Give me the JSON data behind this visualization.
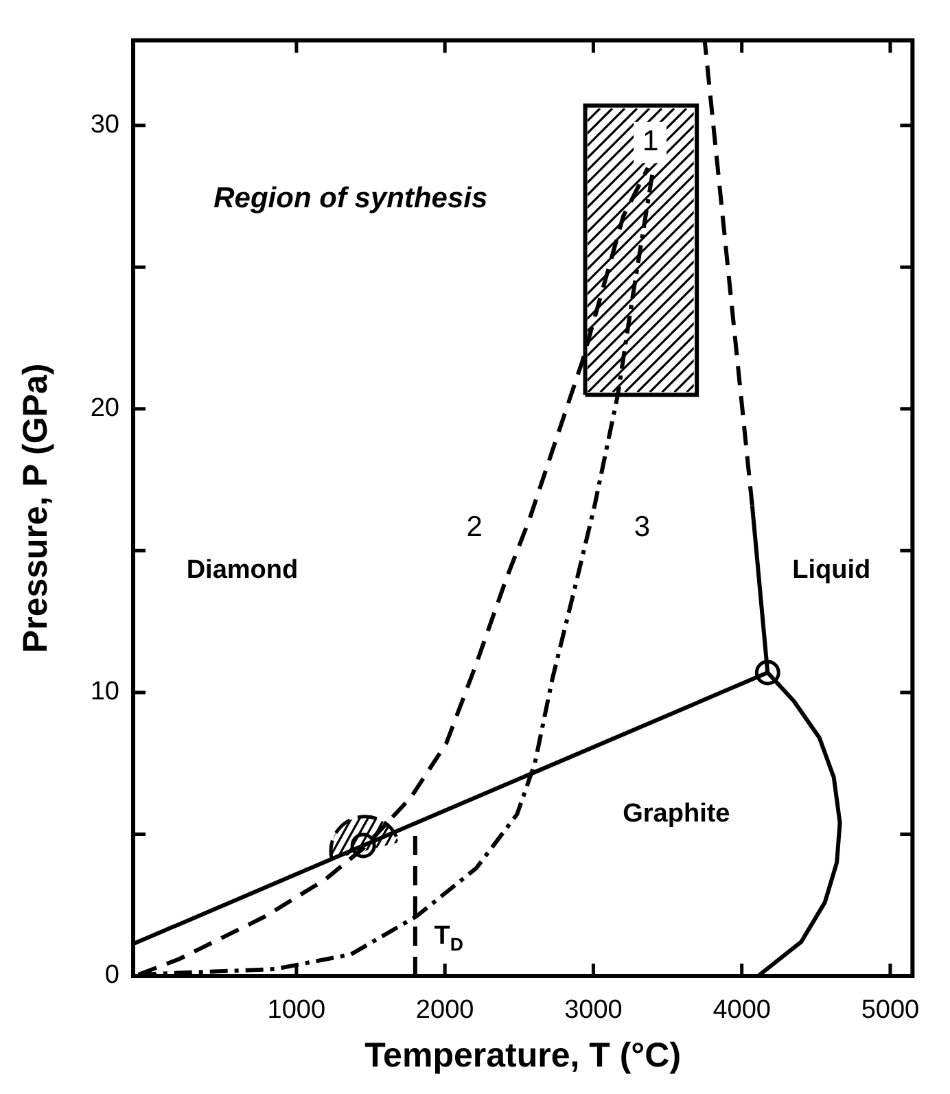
{
  "chart_data": {
    "type": "line",
    "xlabel": "Temperature, T (°C)",
    "ylabel": "Pressure, P (GPa)",
    "xlim": [
      -100,
      5150
    ],
    "xticks": [
      1000,
      2000,
      3000,
      4000,
      5000
    ],
    "ylim": [
      0,
      33
    ],
    "yticks": [
      0,
      {
        "value": 5,
        "label": null
      },
      10,
      {
        "value": 15,
        "label": null
      },
      20,
      {
        "value": 25,
        "label": null
      },
      30
    ],
    "grid": false,
    "legend": false,
    "series": [
      {
        "color": "#000000",
        "line_style": "solid",
        "x": [
          -100,
          4174
        ],
        "values": [
          1.13,
          10.7
        ]
      },
      {
        "color": "#000000",
        "line_style": "solid",
        "x": [
          4174,
          4070
        ],
        "values": [
          10.7,
          16.6
        ]
      },
      {
        "color": "#000000",
        "line_style": "dashed",
        "x": [
          4070,
          3750
        ],
        "values": [
          16.6,
          33
        ]
      },
      {
        "color": "#000000",
        "line_style": "solid",
        "x": [
          4174,
          4350,
          4523,
          4620,
          4661,
          4640,
          4560,
          4400,
          4110
        ],
        "values": [
          10.7,
          9.7,
          8.4,
          7.0,
          5.4,
          4.0,
          2.6,
          1.2,
          0
        ]
      },
      {
        "color": "#000000",
        "line_style": "dashed",
        "x": [
          -64,
          211,
          789,
          1193,
          1450,
          1771,
          2009,
          2211,
          2413,
          2569,
          2927,
          3202,
          3367
        ],
        "values": [
          0.05,
          0.6,
          2.1,
          3.4,
          4.5,
          6.3,
          8.2,
          11.0,
          14.0,
          16.1,
          21.7,
          26.8,
          28.5
        ]
      },
      {
        "color": "#000000",
        "line_style": "dashdot",
        "x": [
          -64,
          853,
          1367,
          1807,
          2211,
          2486,
          2606,
          2725,
          2890,
          3009,
          3165,
          3266,
          3404
        ],
        "values": [
          0.05,
          0.24,
          0.76,
          2.1,
          3.8,
          5.7,
          7.5,
          10.5,
          14.0,
          16.6,
          20.5,
          24.0,
          28.5
        ]
      },
      {
        "color": "#000000",
        "line_style": "dashed",
        "x": [
          1800,
          1800
        ],
        "values": [
          0,
          5.4
        ]
      },
      {
        "type": "area",
        "color": "#000000",
        "line_style": "solid",
        "x": [
          2945,
          3697,
          3697,
          2945,
          2945
        ],
        "values": [
          20.5,
          20.5,
          30.7,
          30.7,
          20.5
        ]
      },
      {
        "type": "scatter",
        "color": "#000000",
        "marker": "circle",
        "x": [
          1450,
          4174
        ],
        "values": [
          4.6,
          10.7
        ]
      }
    ],
    "annotations": [
      "Region of synthesis",
      "Diamond",
      "Liquid",
      "Graphite",
      {
        "text": "1",
        "x": 3385,
        "y": 29.4
      },
      "2",
      "3",
      "T$_{D}$"
    ]
  }
}
